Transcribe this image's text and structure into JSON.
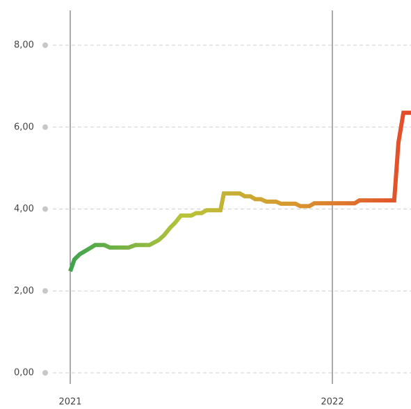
{
  "chart_data": {
    "type": "line",
    "x": [
      2021,
      2021.016,
      2021.037,
      2021.069,
      2021.095,
      2021.13,
      2021.151,
      2021.223,
      2021.249,
      2021.302,
      2021.337,
      2021.358,
      2021.382,
      2021.401,
      2021.422,
      2021.462,
      2021.48,
      2021.501,
      2021.52,
      2021.573,
      2021.586,
      2021.647,
      2021.666,
      2021.687,
      2021.706,
      2021.727,
      2021.748,
      2021.785,
      2021.804,
      2021.859,
      2021.878,
      2021.912,
      2021.931,
      2022.085,
      2022.103,
      2022.236,
      2022.252,
      2022.271,
      2022.3
    ],
    "series": [
      {
        "gradient": [
          "#3fa34d",
          "#b8c43a",
          "#d9952e",
          "#e4492a"
        ],
        "values": [
          2.48,
          2.77,
          2.9,
          3.02,
          3.12,
          3.12,
          3.06,
          3.06,
          3.12,
          3.12,
          3.24,
          3.36,
          3.55,
          3.67,
          3.84,
          3.84,
          3.9,
          3.9,
          3.97,
          3.97,
          4.38,
          4.38,
          4.31,
          4.31,
          4.24,
          4.24,
          4.18,
          4.18,
          4.13,
          4.13,
          4.07,
          4.07,
          4.14,
          4.14,
          4.21,
          4.21,
          5.62,
          6.35,
          6.35
        ]
      }
    ],
    "xlim": [
      2021,
      2022.3
    ],
    "xticks": [
      2021,
      2022
    ],
    "ylim": [
      0,
      8
    ],
    "yticks": [
      {
        "value": 0,
        "label": "0,00"
      },
      {
        "value": 2,
        "label": "2,00"
      },
      {
        "value": 4,
        "label": "4,00"
      },
      {
        "value": 6,
        "label": "6,00"
      },
      {
        "value": 8,
        "label": "8,00"
      }
    ],
    "grid": true
  }
}
